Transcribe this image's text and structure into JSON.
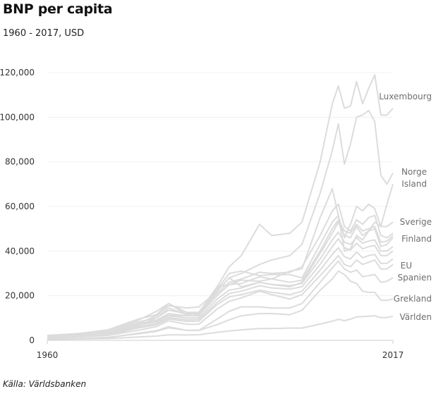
{
  "title": "BNP per capita",
  "subtitle": "1960 - 2017, USD",
  "source": "Källa: Världsbanken",
  "line_color": "#dcdcdc",
  "label_color": "#6e6e6e",
  "chart_data": {
    "type": "line",
    "title": "BNP per capita",
    "subtitle": "1960 - 2017, USD",
    "xlim": [
      1960,
      2017
    ],
    "ylim": [
      0,
      120000
    ],
    "x_ticks": [
      1960,
      2017
    ],
    "y_ticks": [
      0,
      20000,
      40000,
      60000,
      80000,
      100000,
      120000
    ],
    "x": [
      1960,
      1965,
      1970,
      1975,
      1978,
      1980,
      1983,
      1985,
      1988,
      1990,
      1992,
      1995,
      1997,
      2000,
      2002,
      2005,
      2007,
      2008,
      2009,
      2010,
      2011,
      2012,
      2013,
      2014,
      2015,
      2016,
      2017
    ],
    "series": [
      {
        "name": "Luxembourg",
        "values": [
          2200,
          3000,
          4300,
          9000,
          13000,
          16500,
          11500,
          11000,
          24000,
          33000,
          38000,
          52000,
          47000,
          48000,
          53000,
          80000,
          106000,
          114000,
          104000,
          105000,
          116000,
          106000,
          113000,
          119000,
          101000,
          101000,
          104000
        ]
      },
      {
        "name": "Norge",
        "values": [
          1400,
          2200,
          3400,
          7500,
          11000,
          15500,
          14500,
          15000,
          22000,
          28000,
          30000,
          34000,
          36000,
          38000,
          43000,
          66000,
          85000,
          97000,
          79000,
          88000,
          100000,
          101000,
          103000,
          98000,
          74000,
          70000,
          75000
        ]
      },
      {
        "name": "Island",
        "values": [
          1300,
          2700,
          2600,
          6500,
          10000,
          14500,
          11500,
          12500,
          24000,
          25000,
          27000,
          26500,
          27500,
          31000,
          32000,
          55000,
          68000,
          56000,
          40000,
          41000,
          47000,
          45000,
          49000,
          53000,
          51000,
          61000,
          70000
        ]
      },
      {
        "name": "Sverige",
        "values": [
          2100,
          3000,
          4700,
          9500,
          11500,
          16500,
          12500,
          12500,
          23000,
          30000,
          31000,
          29000,
          29500,
          29500,
          28000,
          43000,
          53000,
          56000,
          46000,
          52000,
          60000,
          58000,
          61000,
          59000,
          51000,
          51000,
          53000
        ]
      },
      {
        "name": "Finland",
        "values": [
          1200,
          2000,
          2800,
          7000,
          8500,
          11200,
          11000,
          11500,
          22000,
          28000,
          24000,
          26000,
          25000,
          24000,
          26000,
          39000,
          48000,
          53000,
          47000,
          46000,
          51000,
          47000,
          49000,
          50000,
          42000,
          43000,
          46000
        ]
      },
      {
        "name": "EU",
        "values": [
          900,
          1500,
          2200,
          4500,
          6200,
          8700,
          7200,
          7200,
          14000,
          17500,
          19000,
          22000,
          20500,
          18500,
          20500,
          29000,
          35000,
          38000,
          34000,
          33000,
          36000,
          34000,
          35000,
          36000,
          32000,
          32000,
          34000
        ]
      },
      {
        "name": "Spanien",
        "values": [
          400,
          800,
          1200,
          3200,
          4300,
          6100,
          4500,
          4500,
          9500,
          13000,
          15000,
          15000,
          14500,
          14500,
          16500,
          26000,
          32500,
          35500,
          32000,
          30500,
          31500,
          28500,
          29000,
          29500,
          26000,
          26500,
          28000
        ]
      },
      {
        "name": "Grekland",
        "values": [
          500,
          800,
          1400,
          2900,
          4000,
          5600,
          4500,
          4500,
          7000,
          9200,
          11000,
          12000,
          12000,
          11500,
          13500,
          22500,
          27500,
          31000,
          29500,
          26500,
          25500,
          22000,
          21500,
          21500,
          18000,
          17900,
          18600
        ]
      },
      {
        "name": "Världen",
        "values": [
          450,
          600,
          800,
          1500,
          1900,
          2500,
          2400,
          2500,
          3600,
          4200,
          4700,
          5300,
          5300,
          5500,
          5500,
          7300,
          8600,
          9400,
          8800,
          9500,
          10500,
          10600,
          10800,
          11000,
          10200,
          10200,
          10800
        ]
      },
      {
        "name": "",
        "values": [
          1700,
          2600,
          3700,
          8200,
          10000,
          13500,
          12000,
          12000,
          21000,
          26000,
          27500,
          30500,
          30000,
          30500,
          33000,
          47000,
          58000,
          61000,
          51000,
          49000,
          54000,
          52000,
          55000,
          56000,
          47000,
          46000,
          48000
        ]
      },
      {
        "name": "",
        "values": [
          1500,
          2300,
          3200,
          7400,
          9000,
          12000,
          11000,
          11200,
          20000,
          25000,
          25500,
          28500,
          27500,
          26000,
          27000,
          40000,
          50000,
          54000,
          49000,
          48000,
          52000,
          49000,
          50000,
          51000,
          44000,
          44500,
          47000
        ]
      },
      {
        "name": "",
        "values": [
          1300,
          2000,
          2900,
          6800,
          8200,
          11000,
          10000,
          10200,
          18500,
          22500,
          23500,
          26000,
          25000,
          24500,
          25500,
          36500,
          45000,
          48500,
          44000,
          43000,
          46000,
          43500,
          44500,
          45000,
          40000,
          40000,
          42000
        ]
      },
      {
        "name": "",
        "values": [
          1100,
          1800,
          2600,
          6000,
          7500,
          10200,
          9200,
          9400,
          17000,
          21000,
          22000,
          24500,
          23500,
          23000,
          24000,
          34000,
          42000,
          45500,
          41500,
          40500,
          43500,
          41000,
          42000,
          42500,
          38000,
          38000,
          40000
        ]
      },
      {
        "name": "",
        "values": [
          1000,
          1700,
          2400,
          5500,
          7000,
          9500,
          8500,
          8600,
          16000,
          19500,
          20500,
          22500,
          21500,
          20500,
          22000,
          31500,
          38500,
          41500,
          37500,
          36500,
          39500,
          37000,
          38000,
          38500,
          34500,
          34500,
          36500
        ]
      }
    ]
  }
}
